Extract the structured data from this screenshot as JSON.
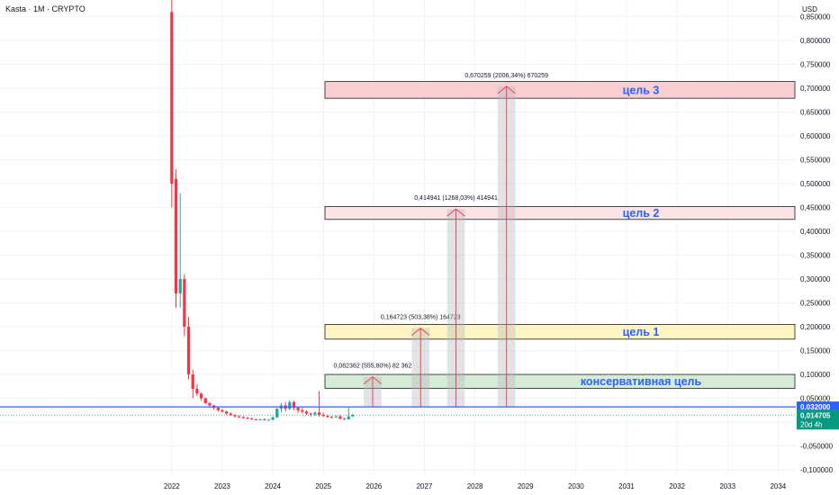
{
  "header": {
    "title": "Kasta · 1M · CRYPTO",
    "currency": "USD"
  },
  "price_axis": {
    "labels": [
      "0,850000",
      "0,800000",
      "0,750000",
      "0,700000",
      "0,650000",
      "0,600000",
      "0,550000",
      "0,500000",
      "0,450000",
      "0,400000",
      "0,350000",
      "0,300000",
      "0,250000",
      "0,200000",
      "0,150000",
      "0,100000",
      "0,050000",
      "0,000000",
      "-0,050000",
      "-0,100000"
    ],
    "values": [
      0.85,
      0.8,
      0.75,
      0.7,
      0.65,
      0.6,
      0.55,
      0.5,
      0.45,
      0.4,
      0.35,
      0.3,
      0.25,
      0.2,
      0.15,
      0.1,
      0.05,
      0.0,
      -0.05,
      -0.1
    ]
  },
  "time_axis": {
    "labels": [
      "2022",
      "2023",
      "2024",
      "2025",
      "2026",
      "2027",
      "2028",
      "2029",
      "2030",
      "2031",
      "2032",
      "2033",
      "2034"
    ],
    "values": [
      2022,
      2023,
      2024,
      2025,
      2026,
      2027,
      2028,
      2029,
      2030,
      2031,
      2032,
      2033,
      2034
    ]
  },
  "colors": {
    "up": "#26a69a",
    "down": "#f23645",
    "blue_line": "#2962ff",
    "target_text": "#2962ff",
    "price_badge": "#2962ff",
    "current_badge": "#089981"
  },
  "badges": {
    "level": {
      "value": 0.032,
      "text": "0,032000"
    },
    "current": {
      "value": 0.014705,
      "text": "0,014705",
      "countdown": "20d 4h"
    }
  },
  "level_line": {
    "value": 0.032
  },
  "targets": [
    {
      "name": "консервативная цель",
      "low": 0.071,
      "high": 0.1,
      "fill": "#d7ecd6",
      "stroke": "#1b1b1b"
    },
    {
      "name": "цель 1",
      "low": 0.174,
      "high": 0.205,
      "fill": "#fdf6c4",
      "stroke": "#1b1b1b"
    },
    {
      "name": "цель 2",
      "low": 0.425,
      "high": 0.452,
      "fill": "#fbe4e6",
      "stroke": "#1b1b1b"
    },
    {
      "name": "цель 3",
      "low": 0.679,
      "high": 0.714,
      "fill": "#f9cfd3",
      "stroke": "#1b1b1b"
    }
  ],
  "measures": [
    {
      "x_start": 2025.8,
      "x_end": 2026.15,
      "label": "0,082362 (555,80%) 82 362",
      "top": 0.095
    },
    {
      "x_start": 2026.75,
      "x_end": 2027.1,
      "label": "0,164723 (503,38%) 164723",
      "top": 0.197
    },
    {
      "x_start": 2027.45,
      "x_end": 2027.8,
      "label": "0,414941 (1268,03%) 414941",
      "top": 0.447
    },
    {
      "x_start": 2028.45,
      "x_end": 2028.8,
      "label": "0,670259 (2006,34%) 670259",
      "top": 0.704
    }
  ],
  "chart_data": {
    "type": "candlestick",
    "title": "Kasta · 1M · CRYPTO",
    "ylabel": "USD",
    "ylim": [
      -0.115,
      0.885
    ],
    "xlim": [
      2018.6,
      2034.35
    ],
    "series": [
      {
        "name": "",
        "values": [
          {
            "t": 2022.0,
            "o": 0.86,
            "h": 0.9,
            "l": 0.45,
            "c": 0.5
          },
          {
            "t": 2022.083,
            "o": 0.51,
            "h": 0.53,
            "l": 0.24,
            "c": 0.27
          },
          {
            "t": 2022.167,
            "o": 0.27,
            "h": 0.48,
            "l": 0.24,
            "c": 0.3
          },
          {
            "t": 2022.25,
            "o": 0.3,
            "h": 0.31,
            "l": 0.18,
            "c": 0.2
          },
          {
            "t": 2022.333,
            "o": 0.2,
            "h": 0.22,
            "l": 0.09,
            "c": 0.1
          },
          {
            "t": 2022.417,
            "o": 0.1,
            "h": 0.11,
            "l": 0.05,
            "c": 0.07
          },
          {
            "t": 2022.5,
            "o": 0.07,
            "h": 0.08,
            "l": 0.055,
            "c": 0.06
          },
          {
            "t": 2022.583,
            "o": 0.06,
            "h": 0.062,
            "l": 0.045,
            "c": 0.05
          },
          {
            "t": 2022.667,
            "o": 0.05,
            "h": 0.052,
            "l": 0.038,
            "c": 0.04
          },
          {
            "t": 2022.75,
            "o": 0.04,
            "h": 0.042,
            "l": 0.03,
            "c": 0.035
          },
          {
            "t": 2022.833,
            "o": 0.035,
            "h": 0.036,
            "l": 0.026,
            "c": 0.03
          },
          {
            "t": 2022.917,
            "o": 0.03,
            "h": 0.031,
            "l": 0.022,
            "c": 0.025
          },
          {
            "t": 2023.0,
            "o": 0.025,
            "h": 0.028,
            "l": 0.02,
            "c": 0.022
          },
          {
            "t": 2023.083,
            "o": 0.022,
            "h": 0.024,
            "l": 0.015,
            "c": 0.018
          },
          {
            "t": 2023.167,
            "o": 0.018,
            "h": 0.02,
            "l": 0.013,
            "c": 0.015
          },
          {
            "t": 2023.25,
            "o": 0.015,
            "h": 0.016,
            "l": 0.01,
            "c": 0.012
          },
          {
            "t": 2023.333,
            "o": 0.012,
            "h": 0.014,
            "l": 0.009,
            "c": 0.011
          },
          {
            "t": 2023.417,
            "o": 0.011,
            "h": 0.012,
            "l": 0.007,
            "c": 0.009
          },
          {
            "t": 2023.5,
            "o": 0.009,
            "h": 0.011,
            "l": 0.006,
            "c": 0.008
          },
          {
            "t": 2023.583,
            "o": 0.008,
            "h": 0.009,
            "l": 0.005,
            "c": 0.006
          },
          {
            "t": 2023.667,
            "o": 0.006,
            "h": 0.007,
            "l": 0.004,
            "c": 0.005
          },
          {
            "t": 2023.75,
            "o": 0.005,
            "h": 0.007,
            "l": 0.004,
            "c": 0.006
          },
          {
            "t": 2023.833,
            "o": 0.006,
            "h": 0.008,
            "l": 0.005,
            "c": 0.005
          },
          {
            "t": 2023.917,
            "o": 0.005,
            "h": 0.006,
            "l": 0.004,
            "c": 0.005
          },
          {
            "t": 2024.0,
            "o": 0.005,
            "h": 0.012,
            "l": 0.004,
            "c": 0.01
          },
          {
            "t": 2024.083,
            "o": 0.01,
            "h": 0.03,
            "l": 0.009,
            "c": 0.028
          },
          {
            "t": 2024.167,
            "o": 0.028,
            "h": 0.04,
            "l": 0.02,
            "c": 0.035
          },
          {
            "t": 2024.25,
            "o": 0.035,
            "h": 0.042,
            "l": 0.022,
            "c": 0.028
          },
          {
            "t": 2024.333,
            "o": 0.028,
            "h": 0.046,
            "l": 0.025,
            "c": 0.042
          },
          {
            "t": 2024.417,
            "o": 0.042,
            "h": 0.045,
            "l": 0.025,
            "c": 0.03
          },
          {
            "t": 2024.5,
            "o": 0.03,
            "h": 0.032,
            "l": 0.02,
            "c": 0.025
          },
          {
            "t": 2024.583,
            "o": 0.025,
            "h": 0.03,
            "l": 0.018,
            "c": 0.022
          },
          {
            "t": 2024.667,
            "o": 0.022,
            "h": 0.025,
            "l": 0.015,
            "c": 0.018
          },
          {
            "t": 2024.75,
            "o": 0.018,
            "h": 0.02,
            "l": 0.012,
            "c": 0.016
          },
          {
            "t": 2024.833,
            "o": 0.016,
            "h": 0.022,
            "l": 0.013,
            "c": 0.02
          },
          {
            "t": 2024.917,
            "o": 0.02,
            "h": 0.065,
            "l": 0.012,
            "c": 0.015
          },
          {
            "t": 2025.0,
            "o": 0.015,
            "h": 0.02,
            "l": 0.011,
            "c": 0.013
          },
          {
            "t": 2025.083,
            "o": 0.013,
            "h": 0.016,
            "l": 0.009,
            "c": 0.011
          },
          {
            "t": 2025.167,
            "o": 0.011,
            "h": 0.013,
            "l": 0.008,
            "c": 0.01
          },
          {
            "t": 2025.25,
            "o": 0.01,
            "h": 0.014,
            "l": 0.009,
            "c": 0.012
          },
          {
            "t": 2025.333,
            "o": 0.012,
            "h": 0.015,
            "l": 0.006,
            "c": 0.007
          },
          {
            "t": 2025.417,
            "o": 0.007,
            "h": 0.01,
            "l": 0.005,
            "c": 0.006
          },
          {
            "t": 2025.5,
            "o": 0.006,
            "h": 0.03,
            "l": 0.005,
            "c": 0.012
          },
          {
            "t": 2025.583,
            "o": 0.012,
            "h": 0.018,
            "l": 0.011,
            "c": 0.0147
          }
        ]
      }
    ],
    "grid": true,
    "legend": "none"
  }
}
